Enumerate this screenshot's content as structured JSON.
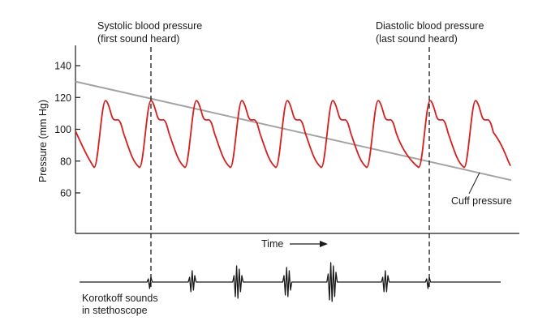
{
  "chart_data": {
    "type": "line",
    "ylabel": "Pressure (mm Hg)",
    "xlabel": "Time",
    "ylim": [
      40,
      150
    ],
    "yticks": [
      60,
      80,
      100,
      120,
      140
    ],
    "grid": false,
    "series": [
      {
        "name": "Cuff pressure",
        "color": "#a3a3a3",
        "x": [
          0,
          1
        ],
        "values": [
          130,
          68
        ]
      },
      {
        "color": "#d6201f",
        "note_beats": 9,
        "systolic_peak": 118,
        "dicrotic_notch": 106,
        "diastolic_trough": 76
      }
    ],
    "annotations": {
      "systolic_line1": "Systolic blood pressure",
      "systolic_line2": "(first sound heard)",
      "diastolic_line1": "Diastolic blood pressure",
      "diastolic_line2": "(last sound heard)",
      "cuff_label": "Cuff pressure",
      "korotkoff_line1": "Korotkoff sounds",
      "korotkoff_line2": "in stethoscope"
    }
  },
  "colors": {
    "arterial": "#d6201f",
    "cuff": "#a3a3a3",
    "ink": "#1a1a1a"
  }
}
